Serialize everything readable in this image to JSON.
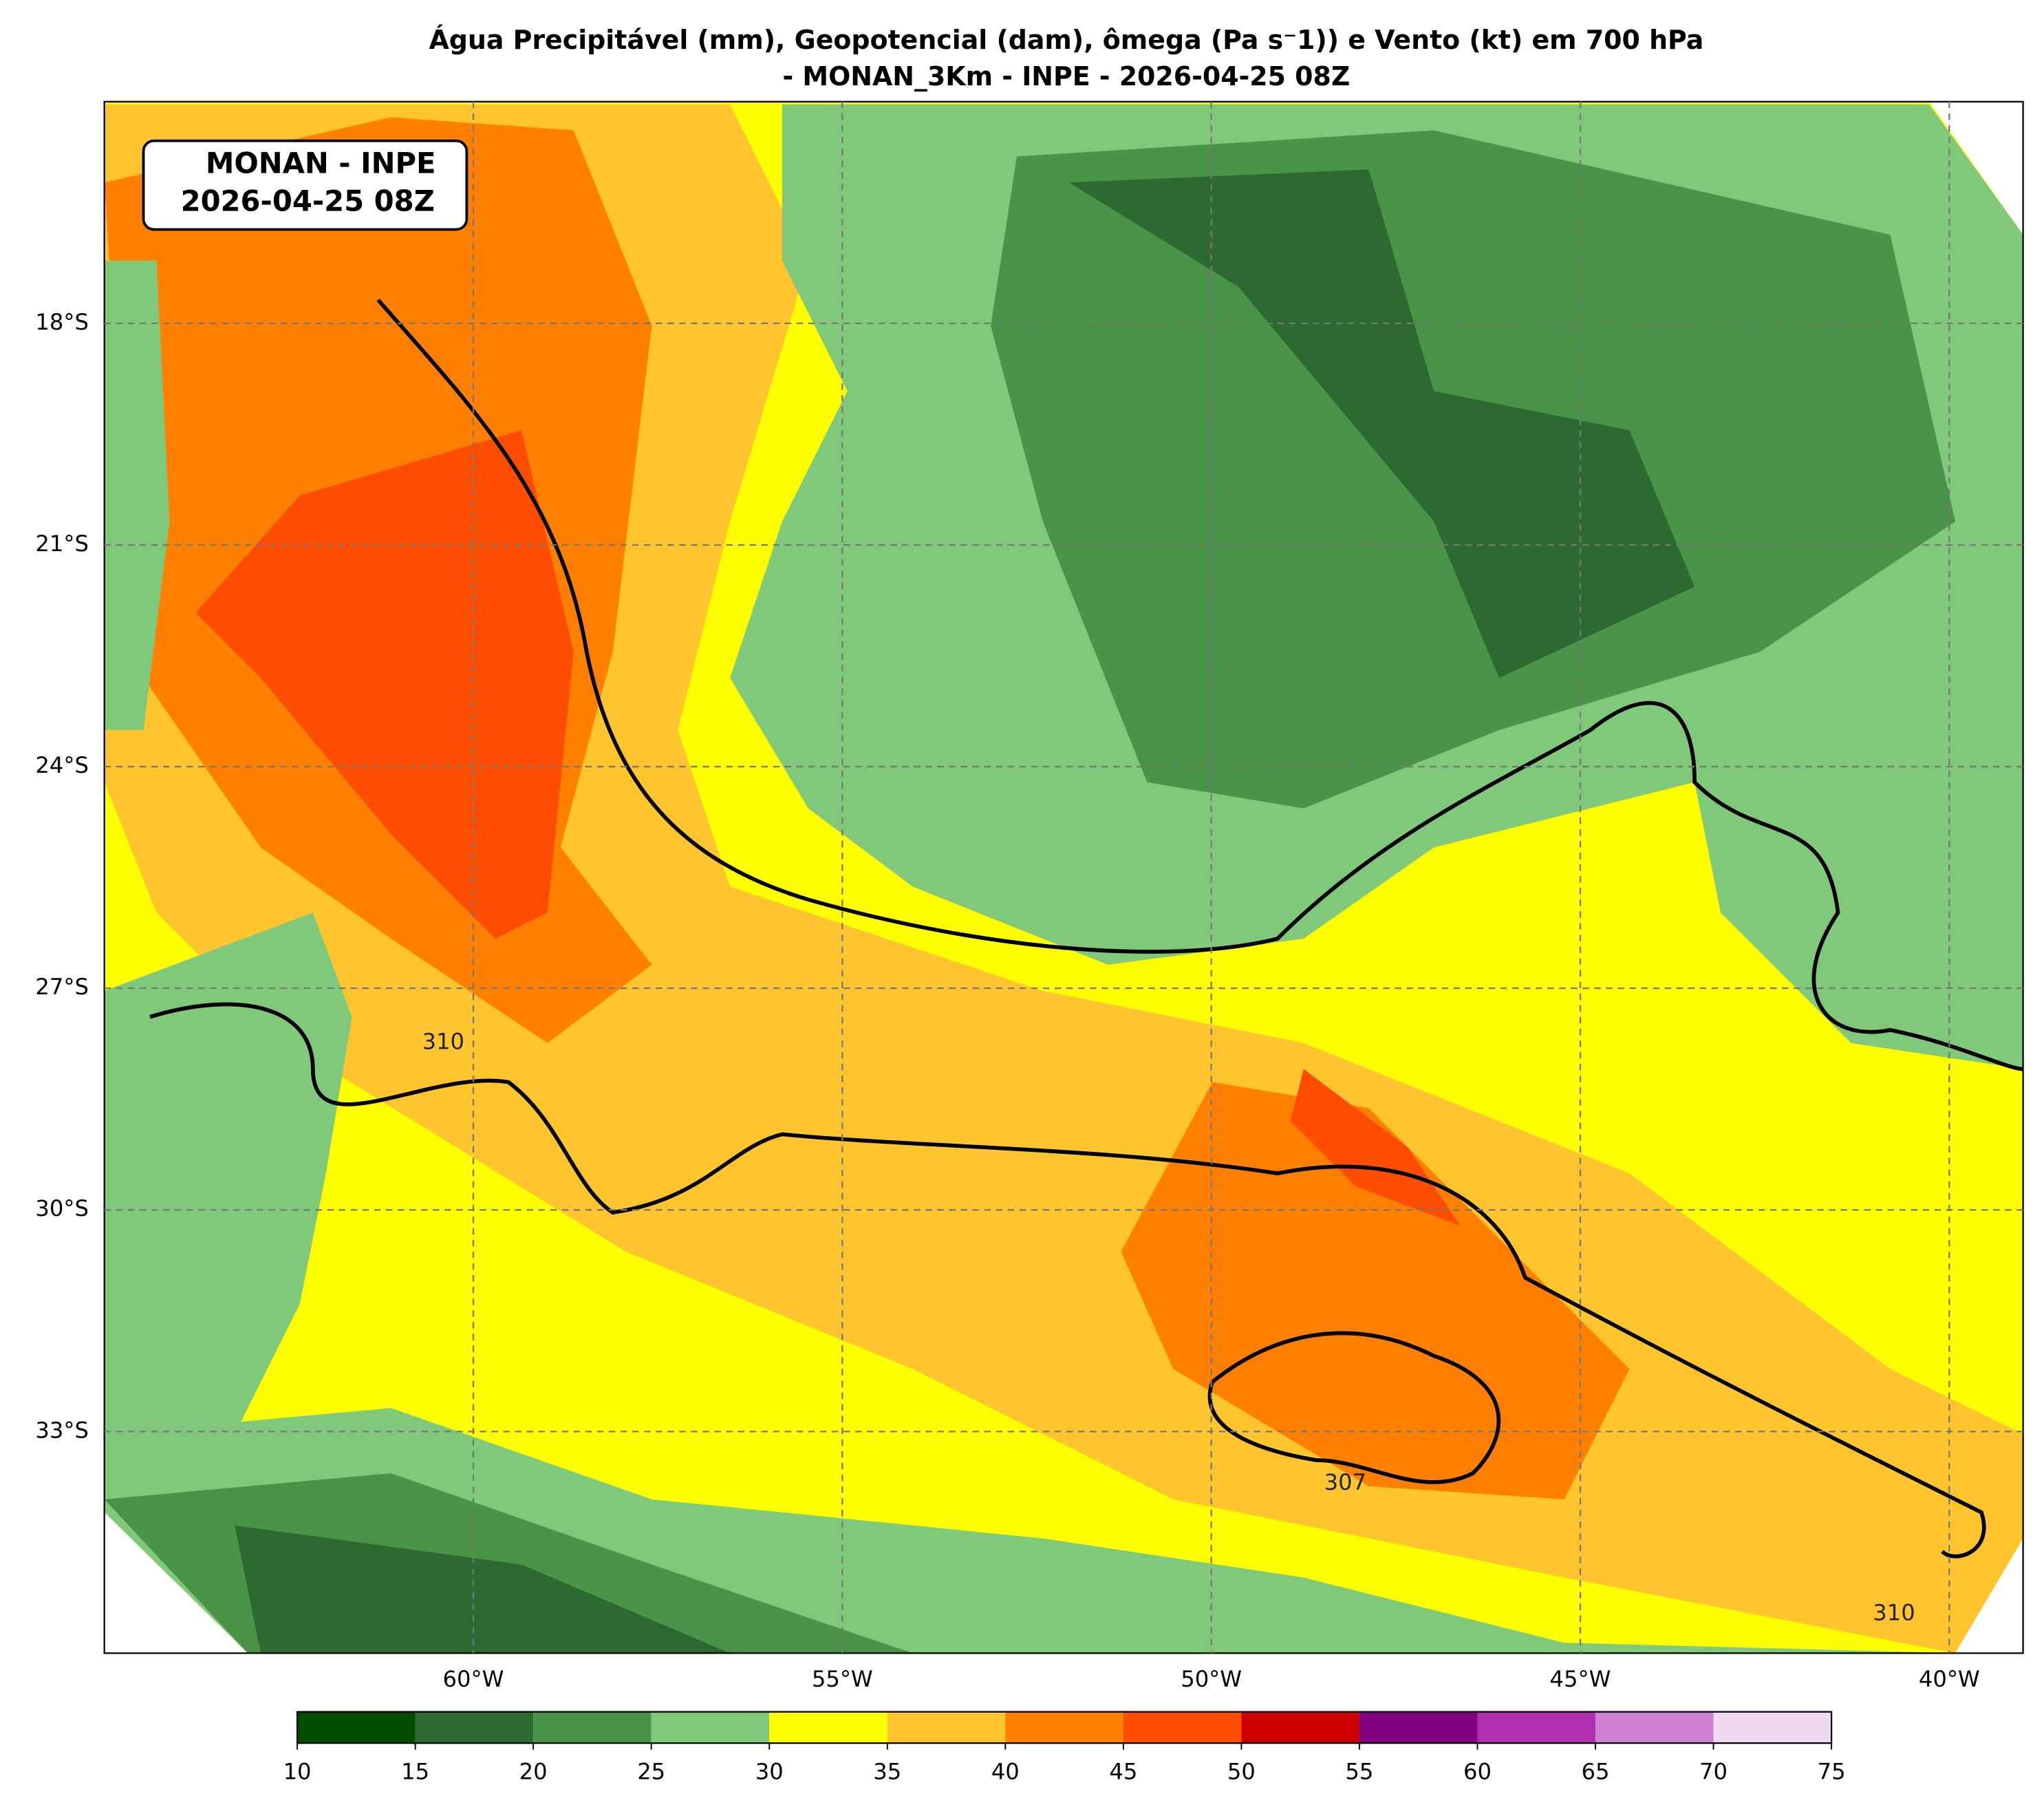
{
  "chart_data": {
    "type": "map",
    "title": [
      "Água Precipitável (mm), Geopotencial (dam), ômega (Pa s⁻1)) e Vento (kt) em 700 hPa",
      "- MONAN_3Km - INPE - 2026-04-25 08Z"
    ],
    "annotation": [
      "MONAN - INPE",
      "2026-04-25 08Z"
    ],
    "xlim": [
      -65,
      -39
    ],
    "ylim": [
      -36,
      -15
    ],
    "xticks": [
      {
        "value": -60,
        "label": "60°W"
      },
      {
        "value": -55,
        "label": "55°W"
      },
      {
        "value": -50,
        "label": "50°W"
      },
      {
        "value": -45,
        "label": "45°W"
      },
      {
        "value": -40,
        "label": "40°W"
      }
    ],
    "yticks": [
      {
        "value": -18,
        "label": "18°S"
      },
      {
        "value": -21,
        "label": "21°S"
      },
      {
        "value": -24,
        "label": "24°S"
      },
      {
        "value": -27,
        "label": "27°S"
      },
      {
        "value": -30,
        "label": "30°S"
      },
      {
        "value": -33,
        "label": "33°S"
      }
    ],
    "grid": true,
    "contour_labels": [
      310,
      307,
      310
    ],
    "colorbar": {
      "levels": [
        10,
        15,
        20,
        25,
        30,
        35,
        40,
        45,
        50,
        55,
        60,
        65,
        70,
        75
      ],
      "colors": [
        "#004d00",
        "#2d6a32",
        "#4a9448",
        "#80c97a",
        "#ffff00",
        "#ffc42e",
        "#ff8000",
        "#ff4d00",
        "#cc0000",
        "#800080",
        "#b030b0",
        "#d080d0",
        "#f0d8f0"
      ]
    }
  }
}
